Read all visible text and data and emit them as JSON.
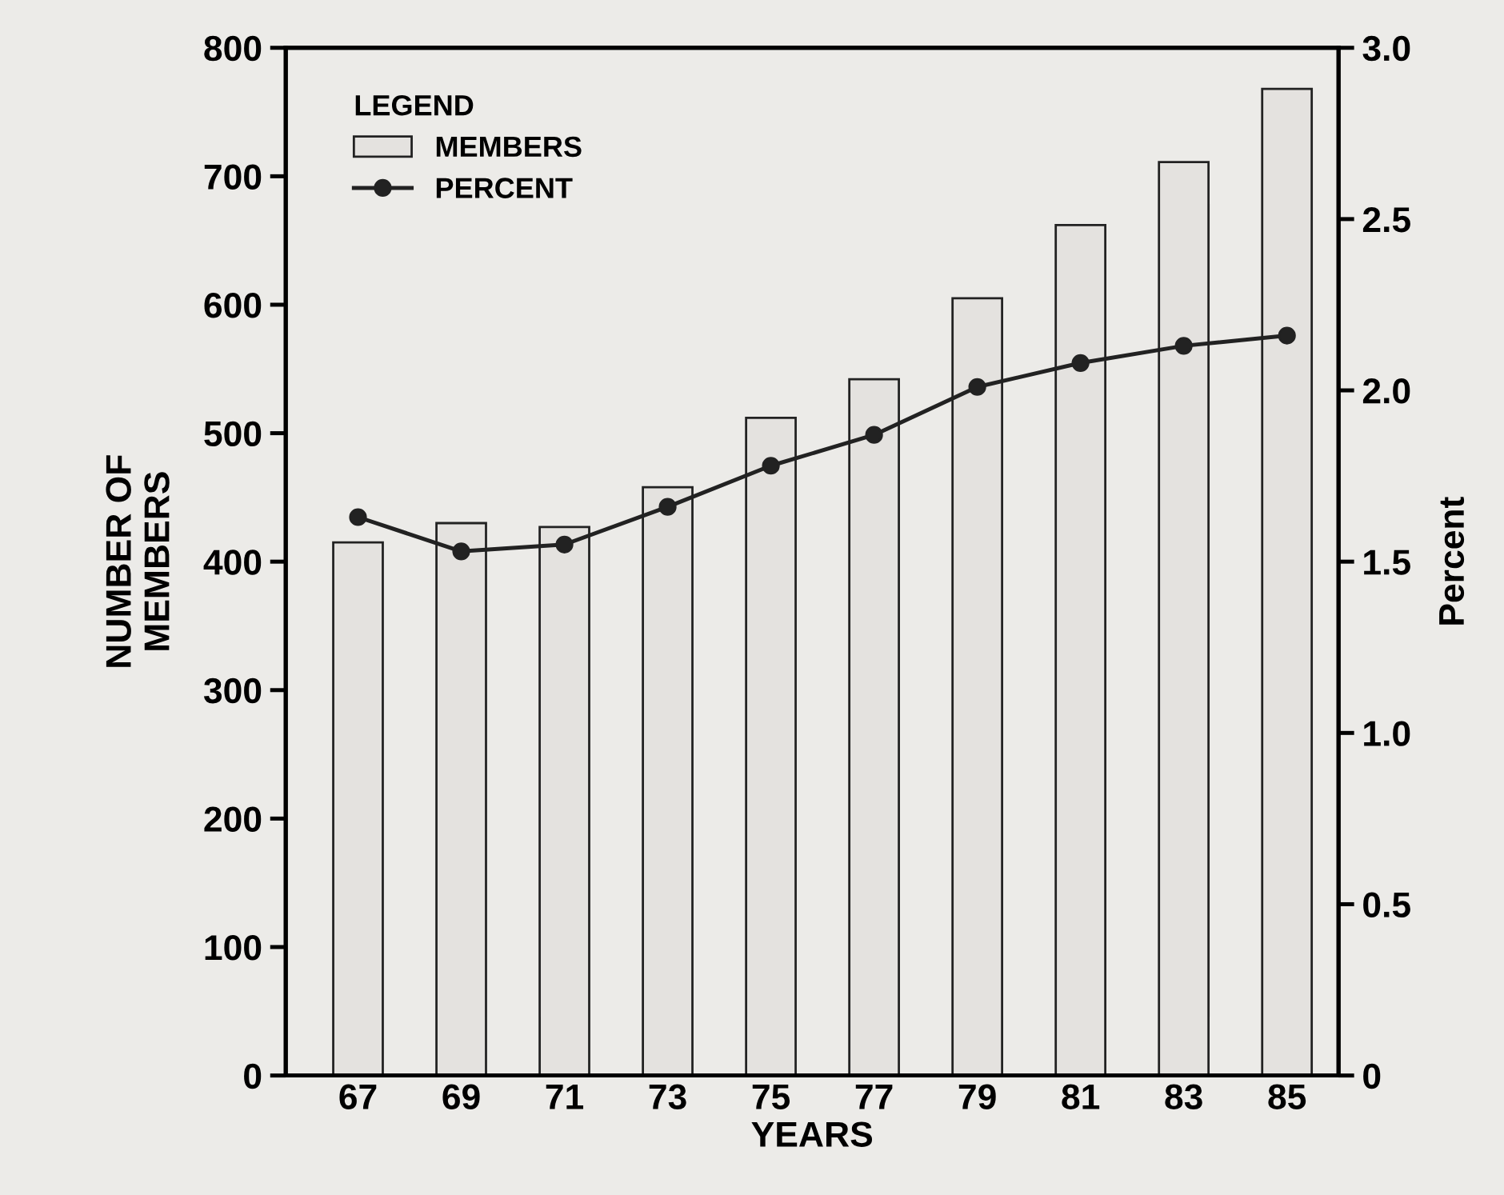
{
  "chart_data": {
    "type": "bar",
    "xlabel": "YEARS",
    "ylabel": "NUMBER OF\nMEMBERS",
    "y2label": "Percent",
    "legend_title": "LEGEND",
    "legend": "top left",
    "grid": false,
    "categories": [
      "67",
      "69",
      "71",
      "73",
      "75",
      "77",
      "79",
      "81",
      "83",
      "85"
    ],
    "ylim": [
      0,
      800
    ],
    "yticks": [
      0,
      100,
      200,
      300,
      400,
      500,
      600,
      700,
      800
    ],
    "y2lim": [
      0,
      3.0
    ],
    "y2ticks": [
      {
        "value": 0,
        "label": "0"
      },
      {
        "value": 0.5,
        "label": "0.5"
      },
      {
        "value": 1.0,
        "label": "1.0"
      },
      {
        "value": 1.5,
        "label": "1.5"
      },
      {
        "value": 2.0,
        "label": "2.0"
      },
      {
        "value": 2.5,
        "label": "2.5"
      },
      {
        "value": 3.0,
        "label": "3.0"
      }
    ],
    "series": [
      {
        "name": "MEMBERS",
        "color": "#e4e2df",
        "values": [
          415,
          430,
          427,
          458,
          512,
          542,
          605,
          662,
          711,
          768
        ]
      },
      {
        "name": "PERCENT",
        "type": "line",
        "axis": "y2",
        "marker": "circle",
        "line_style": "solid",
        "color": "#222222",
        "values": [
          1.63,
          1.53,
          1.55,
          1.66,
          1.78,
          1.87,
          2.01,
          2.08,
          2.13,
          2.16
        ]
      }
    ]
  }
}
